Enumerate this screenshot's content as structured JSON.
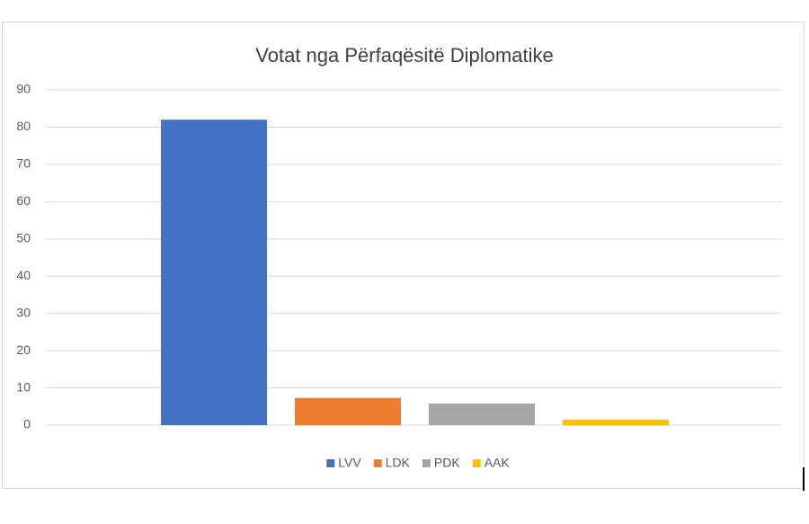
{
  "chart_data": {
    "type": "bar",
    "title": "Votat nga Përfaqësitë Diplomatike",
    "categories": [
      null
    ],
    "series": [
      {
        "name": "LVV",
        "color": "#4472c4",
        "values": [
          82
        ]
      },
      {
        "name": "LDK",
        "color": "#ed7d31",
        "values": [
          7.3
        ]
      },
      {
        "name": "PDK",
        "color": "#a5a5a5",
        "values": [
          5.8
        ]
      },
      {
        "name": "AAK",
        "color": "#ffc000",
        "values": [
          1.5
        ]
      }
    ],
    "ylim": [
      0,
      90
    ],
    "yticks": [
      0,
      10,
      20,
      30,
      40,
      50,
      60,
      70,
      80,
      90
    ],
    "grid": true,
    "legend": "bottom"
  }
}
